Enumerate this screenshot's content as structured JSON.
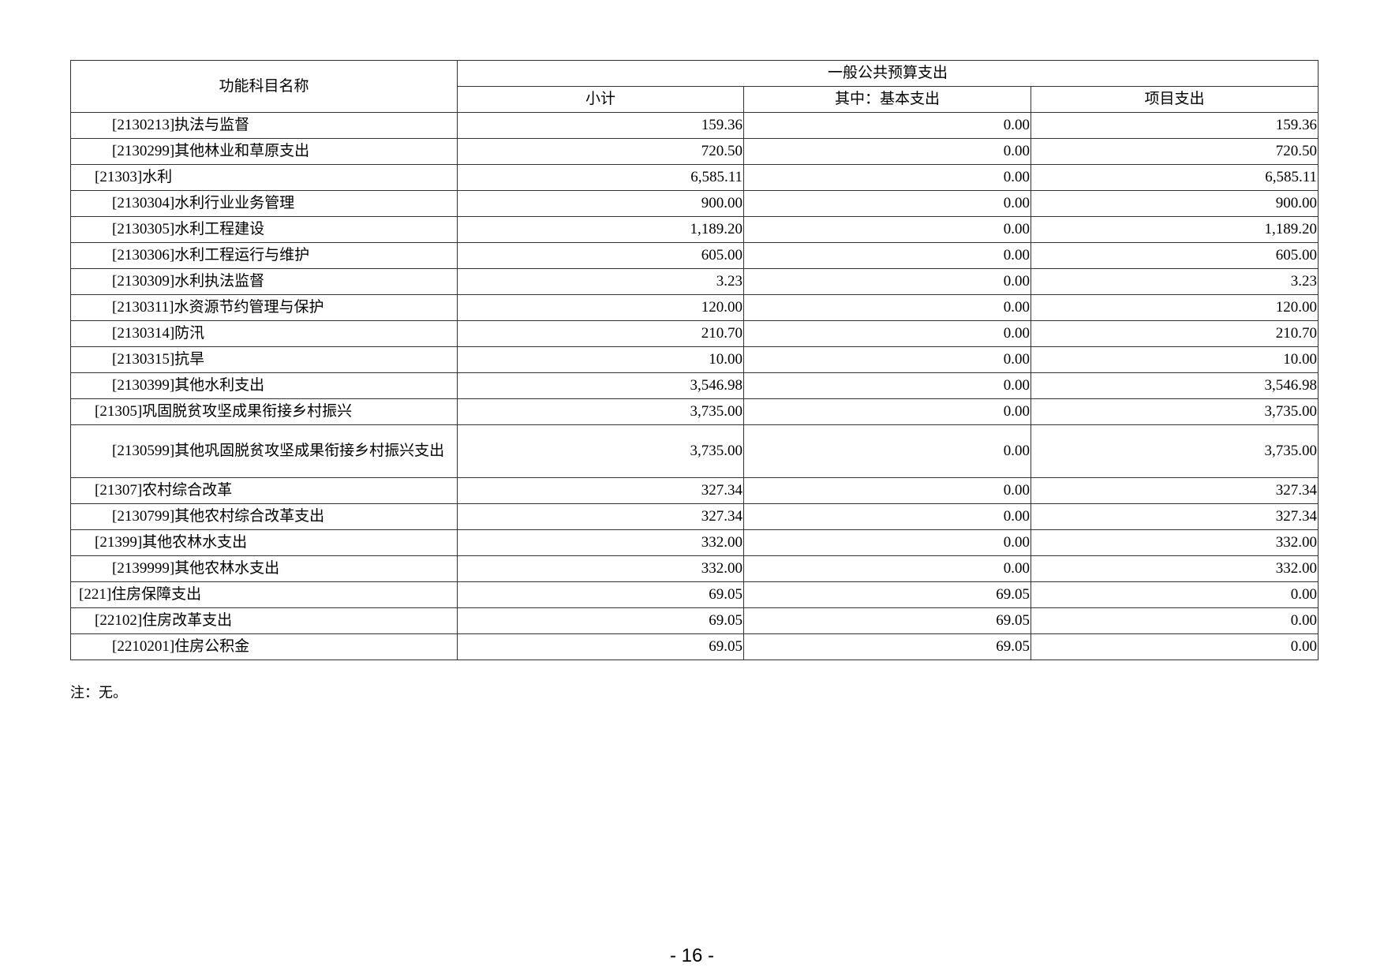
{
  "table": {
    "header": {
      "name_col": "功能科目名称",
      "group": "一般公共预算支出",
      "cols": [
        "小计",
        "其中：基本支出",
        "项目支出"
      ]
    },
    "rows": [
      {
        "level": 3,
        "name": "[2130213]执法与监督",
        "subtotal": "159.36",
        "basic": "0.00",
        "project": "159.36"
      },
      {
        "level": 3,
        "name": "[2130299]其他林业和草原支出",
        "subtotal": "720.50",
        "basic": "0.00",
        "project": "720.50"
      },
      {
        "level": 2,
        "name": "[21303]水利",
        "subtotal": "6,585.11",
        "basic": "0.00",
        "project": "6,585.11"
      },
      {
        "level": 3,
        "name": "[2130304]水利行业业务管理",
        "subtotal": "900.00",
        "basic": "0.00",
        "project": "900.00"
      },
      {
        "level": 3,
        "name": "[2130305]水利工程建设",
        "subtotal": "1,189.20",
        "basic": "0.00",
        "project": "1,189.20"
      },
      {
        "level": 3,
        "name": "[2130306]水利工程运行与维护",
        "subtotal": "605.00",
        "basic": "0.00",
        "project": "605.00"
      },
      {
        "level": 3,
        "name": "[2130309]水利执法监督",
        "subtotal": "3.23",
        "basic": "0.00",
        "project": "3.23"
      },
      {
        "level": 3,
        "name": "[2130311]水资源节约管理与保护",
        "subtotal": "120.00",
        "basic": "0.00",
        "project": "120.00"
      },
      {
        "level": 3,
        "name": "[2130314]防汛",
        "subtotal": "210.70",
        "basic": "0.00",
        "project": "210.70"
      },
      {
        "level": 3,
        "name": "[2130315]抗旱",
        "subtotal": "10.00",
        "basic": "0.00",
        "project": "10.00"
      },
      {
        "level": 3,
        "name": "[2130399]其他水利支出",
        "subtotal": "3,546.98",
        "basic": "0.00",
        "project": "3,546.98"
      },
      {
        "level": 2,
        "name": "[21305]巩固脱贫攻坚成果衔接乡村振兴",
        "subtotal": "3,735.00",
        "basic": "0.00",
        "project": "3,735.00"
      },
      {
        "level": 3,
        "name": "[2130599]其他巩固脱贫攻坚成果衔接乡村振兴支出",
        "subtotal": "3,735.00",
        "basic": "0.00",
        "project": "3,735.00",
        "tall": true
      },
      {
        "level": 2,
        "name": "[21307]农村综合改革",
        "subtotal": "327.34",
        "basic": "0.00",
        "project": "327.34"
      },
      {
        "level": 3,
        "name": "[2130799]其他农村综合改革支出",
        "subtotal": "327.34",
        "basic": "0.00",
        "project": "327.34"
      },
      {
        "level": 2,
        "name": "[21399]其他农林水支出",
        "subtotal": "332.00",
        "basic": "0.00",
        "project": "332.00"
      },
      {
        "level": 3,
        "name": "[2139999]其他农林水支出",
        "subtotal": "332.00",
        "basic": "0.00",
        "project": "332.00"
      },
      {
        "level": 1,
        "name": "[221]住房保障支出",
        "subtotal": "69.05",
        "basic": "69.05",
        "project": "0.00"
      },
      {
        "level": 2,
        "name": "[22102]住房改革支出",
        "subtotal": "69.05",
        "basic": "69.05",
        "project": "0.00"
      },
      {
        "level": 3,
        "name": "[2210201]住房公积金",
        "subtotal": "69.05",
        "basic": "69.05",
        "project": "0.00"
      }
    ]
  },
  "note": "注：无。",
  "page_number": "- 16 -"
}
